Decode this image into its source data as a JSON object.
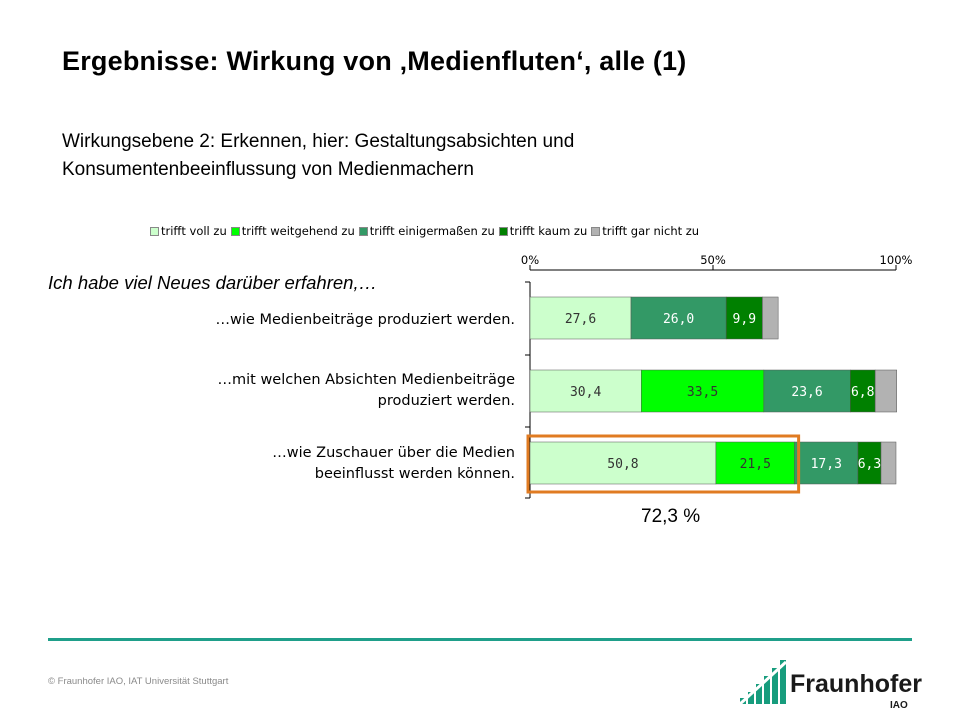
{
  "slide": {
    "title": "Ergebnisse: Wirkung von ‚Medienfluten‘, alle (1)",
    "subtitle": "Wirkungsebene 2: Erkennen, hier: Gestaltungsabsichten und Konsumentenbeeinflussung  von Medienmachern",
    "question": "Ich habe viel Neues darüber erfahren,…",
    "highlight_total": "72,3 %",
    "copyright": "© Fraunhofer IAO, IAT Universität Stuttgart",
    "logo_name": "Fraunhofer",
    "logo_sub": "IAO"
  },
  "chart_data": {
    "type": "bar",
    "orientation": "horizontal",
    "stacked": true,
    "normalized_percent": true,
    "categories": [
      "…wie Medienbeiträge produziert werden.",
      "…mit welchen Absichten Medienbeiträge\nproduziert werden.",
      "…wie Zuschauer über die Medien\nbeeinflusst werden können."
    ],
    "series": [
      {
        "name": "trifft voll zu",
        "color": "#ccffcc",
        "values": [
          27.6,
          30.4,
          50.8
        ],
        "labels": [
          "27,6",
          "30,4",
          "50,8"
        ],
        "label_color": "#333333"
      },
      {
        "name": "trifft weitgehend zu",
        "color": "#00ff00",
        "values": [
          0,
          33.5,
          21.5
        ],
        "labels": [
          "",
          "33,5",
          "21,5"
        ],
        "label_color": "#333333"
      },
      {
        "name": "trifft einigermaßen zu",
        "color": "#339966",
        "values": [
          26.0,
          23.6,
          17.3
        ],
        "labels": [
          "26,0",
          "23,6",
          "17,3"
        ],
        "label_color": "#ffffff"
      },
      {
        "name": "trifft kaum zu",
        "color": "#008000",
        "values": [
          9.9,
          6.8,
          6.3
        ],
        "labels": [
          "9,9",
          "6,8",
          "6,3"
        ],
        "label_color": "#ffffff"
      },
      {
        "name": "trifft gar nicht zu",
        "color": "#b2b2b2",
        "values": [
          4.3,
          5.9,
          4.1
        ],
        "labels": [
          "",
          "",
          ""
        ],
        "label_color": "#333333"
      }
    ],
    "x_ticks": [
      "0%",
      "50%",
      "100%"
    ],
    "xlim": [
      0,
      100
    ],
    "legend_position": "top",
    "highlight_category_index": 2,
    "highlight_color": "#e07b22"
  }
}
